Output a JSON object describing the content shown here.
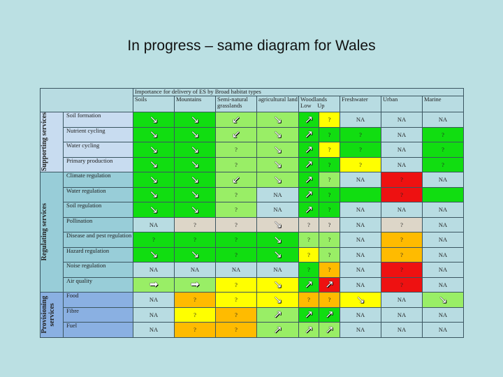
{
  "title": "In progress – same diagram for Wales",
  "table": {
    "header": "Importance for delivery of ES by Broad habitat types",
    "columns": [
      "Soils",
      "Mountains",
      "Semi-natural grasslands",
      "agricultural land",
      "Woodlands",
      "Freshwater",
      "Urban",
      "Marine"
    ],
    "woodland_sub": [
      "Low",
      "Up"
    ],
    "palette": {
      "G": "#11dd11",
      "LG": "#99ee66",
      "Y": "#ffff00",
      "O": "#ffbb00",
      "R": "#ee1111",
      "B": "#b8dce2",
      "T": "#ddd6c8",
      "E": "#b8dce2"
    },
    "icons": {
      "down": "↘",
      "up": "↗",
      "right": "➡",
      "left": "↙"
    },
    "groups": [
      {
        "label": "Supporting services",
        "color": "#c8dcf0",
        "rows": [
          {
            "label": "Soil formation",
            "cells": [
              [
                "G",
                "down"
              ],
              [
                "G",
                "down"
              ],
              [
                "LG",
                "left"
              ],
              [
                "LG",
                "down"
              ],
              [
                "G",
                "up"
              ],
              [
                "Y",
                "?"
              ],
              [
                "B",
                "NA"
              ],
              [
                "B",
                "NA"
              ],
              [
                "B",
                "NA"
              ]
            ]
          },
          {
            "label": "Nutrient cycling",
            "cells": [
              [
                "G",
                "down"
              ],
              [
                "G",
                "down"
              ],
              [
                "LG",
                "left"
              ],
              [
                "LG",
                "down"
              ],
              [
                "G",
                "up"
              ],
              [
                "G",
                "?"
              ],
              [
                "G",
                "?"
              ],
              [
                "B",
                "NA"
              ],
              [
                "G",
                "?"
              ]
            ]
          },
          {
            "label": "Water cycling",
            "cells": [
              [
                "G",
                "down"
              ],
              [
                "G",
                "down"
              ],
              [
                "LG",
                "?"
              ],
              [
                "LG",
                "down"
              ],
              [
                "G",
                "up"
              ],
              [
                "Y",
                "?"
              ],
              [
                "G",
                "?"
              ],
              [
                "B",
                "NA"
              ],
              [
                "G",
                "?"
              ]
            ]
          },
          {
            "label": "Primary production",
            "cells": [
              [
                "G",
                "down"
              ],
              [
                "G",
                "down"
              ],
              [
                "LG",
                "?"
              ],
              [
                "LG",
                "down"
              ],
              [
                "G",
                "up"
              ],
              [
                "G",
                "?"
              ],
              [
                "Y",
                "?"
              ],
              [
                "B",
                "NA"
              ],
              [
                "G",
                "?"
              ]
            ]
          }
        ]
      },
      {
        "label": "Regulating services",
        "color": "#98cdd8",
        "rows": [
          {
            "label": "Climate regulation",
            "cells": [
              [
                "G",
                "down"
              ],
              [
                "G",
                "down"
              ],
              [
                "LG",
                "left"
              ],
              [
                "LG",
                "down"
              ],
              [
                "G",
                "up"
              ],
              [
                "LG",
                "?"
              ],
              [
                "B",
                "NA"
              ],
              [
                "R",
                "?"
              ],
              [
                "B",
                "NA"
              ]
            ]
          },
          {
            "label": "Water regulation",
            "cells": [
              [
                "G",
                "down"
              ],
              [
                "G",
                "down"
              ],
              [
                "LG",
                "?"
              ],
              [
                "B",
                "NA"
              ],
              [
                "G",
                "up"
              ],
              [
                "G",
                "?"
              ],
              [
                "G",
                ""
              ],
              [
                "R",
                "?"
              ],
              [
                "G",
                ""
              ]
            ]
          },
          {
            "label": "Soil regulation",
            "cells": [
              [
                "G",
                "down"
              ],
              [
                "G",
                "down"
              ],
              [
                "LG",
                "?"
              ],
              [
                "B",
                "NA"
              ],
              [
                "G",
                "up"
              ],
              [
                "G",
                "?"
              ],
              [
                "B",
                "NA"
              ],
              [
                "B",
                "NA"
              ],
              [
                "B",
                "NA"
              ]
            ]
          },
          {
            "label": "Pollination",
            "cells": [
              [
                "B",
                "NA"
              ],
              [
                "T",
                "?"
              ],
              [
                "T",
                "?"
              ],
              [
                "T",
                "down"
              ],
              [
                "T",
                "?"
              ],
              [
                "T",
                "?"
              ],
              [
                "B",
                "NA"
              ],
              [
                "T",
                "?"
              ],
              [
                "B",
                "NA"
              ]
            ]
          },
          {
            "label": "Disease and pest regulation",
            "cells": [
              [
                "G",
                "?"
              ],
              [
                "G",
                "?"
              ],
              [
                "G",
                "?"
              ],
              [
                "G",
                "down"
              ],
              [
                "LG",
                "?"
              ],
              [
                "LG",
                "?"
              ],
              [
                "B",
                "NA"
              ],
              [
                "O",
                "?"
              ],
              [
                "B",
                "NA"
              ]
            ]
          },
          {
            "label": "Hazard regulation",
            "cells": [
              [
                "G",
                "down"
              ],
              [
                "G",
                "down"
              ],
              [
                "G",
                "?"
              ],
              [
                "G",
                "down"
              ],
              [
                "Y",
                "?"
              ],
              [
                "LG",
                "?"
              ],
              [
                "B",
                "NA"
              ],
              [
                "O",
                "?"
              ],
              [
                "B",
                "NA"
              ]
            ]
          },
          {
            "label": "Noise regulation",
            "cells": [
              [
                "B",
                "NA"
              ],
              [
                "B",
                "NA"
              ],
              [
                "B",
                "NA"
              ],
              [
                "B",
                "NA"
              ],
              [
                "G",
                "?"
              ],
              [
                "O",
                "?"
              ],
              [
                "B",
                "NA"
              ],
              [
                "R",
                "?"
              ],
              [
                "B",
                "NA"
              ]
            ]
          },
          {
            "label": "Air quality",
            "cells": [
              [
                "LG",
                "right"
              ],
              [
                "LG",
                "right"
              ],
              [
                "Y",
                "?"
              ],
              [
                "Y",
                "down"
              ],
              [
                "G",
                "up"
              ],
              [
                "R",
                "up"
              ],
              [
                "B",
                "NA"
              ],
              [
                "R",
                "?"
              ],
              [
                "B",
                "NA"
              ]
            ]
          }
        ]
      },
      {
        "label": "Provisioning services",
        "color": "#8ab0e2",
        "rows": [
          {
            "label": "Food",
            "cells": [
              [
                "B",
                "NA"
              ],
              [
                "O",
                "?"
              ],
              [
                "Y",
                "?"
              ],
              [
                "Y",
                "down"
              ],
              [
                "O",
                "?"
              ],
              [
                "O",
                "?"
              ],
              [
                "Y",
                "down"
              ],
              [
                "B",
                "NA"
              ],
              [
                "LG",
                "down"
              ]
            ]
          },
          {
            "label": "Fibre",
            "cells": [
              [
                "B",
                "NA"
              ],
              [
                "Y",
                "?"
              ],
              [
                "O",
                "?"
              ],
              [
                "LG",
                "up"
              ],
              [
                "G",
                "up"
              ],
              [
                "G",
                "up"
              ],
              [
                "B",
                "NA"
              ],
              [
                "B",
                "NA"
              ],
              [
                "B",
                "NA"
              ]
            ]
          },
          {
            "label": "Fuel",
            "cells": [
              [
                "B",
                "NA"
              ],
              [
                "O",
                "?"
              ],
              [
                "O",
                "?"
              ],
              [
                "LG",
                "up"
              ],
              [
                "LG",
                "up"
              ],
              [
                "LG",
                "up"
              ],
              [
                "B",
                "NA"
              ],
              [
                "B",
                "NA"
              ],
              [
                "B",
                "NA"
              ]
            ]
          }
        ]
      }
    ]
  }
}
